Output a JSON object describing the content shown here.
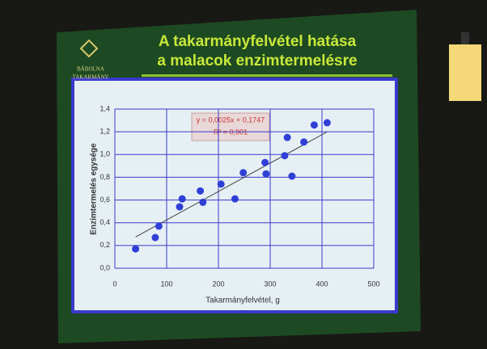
{
  "chart_data": {
    "type": "scatter",
    "title": [
      "A takarmányfelvétel hatása",
      "a malacok enzimtermelésre"
    ],
    "logo": [
      "BÁBOLNA",
      "TAKARMÁNY"
    ],
    "x_label": "Takarmányfelvétel, g",
    "y_label": "Enzimtermelés egysége",
    "annotation": [
      "y = 0,0025x + 0,1747",
      "R² = 0,901"
    ],
    "trendline": {
      "slope": 0.0025,
      "intercept": 0.1747
    },
    "x": [
      40,
      78,
      85,
      125,
      130,
      165,
      170,
      205,
      232,
      248,
      290,
      292,
      328,
      333,
      342,
      365,
      385,
      410
    ],
    "series": [
      {
        "color": "#2f3fd6",
        "values": [
          0.17,
          0.27,
          0.37,
          0.54,
          0.61,
          0.68,
          0.58,
          0.74,
          0.61,
          0.84,
          0.93,
          0.83,
          0.99,
          1.15,
          0.81,
          1.11,
          1.26,
          1.28
        ]
      }
    ],
    "xlim": [
      0,
      500
    ],
    "xticks": [
      0,
      100,
      200,
      300,
      400,
      500
    ],
    "ylim": [
      0,
      1.4
    ],
    "yticks": [
      {
        "value": 0,
        "label": "0,0"
      },
      {
        "value": 0.2,
        "label": "0,2"
      },
      {
        "value": 0.4,
        "label": "0,4"
      },
      {
        "value": 0.6,
        "label": "0,6"
      },
      {
        "value": 0.8,
        "label": "0,8"
      },
      {
        "value": 1.0,
        "label": "1,0"
      },
      {
        "value": 1.2,
        "label": "1,2"
      },
      {
        "value": 1.4,
        "label": "1,4"
      }
    ],
    "grid": true
  }
}
